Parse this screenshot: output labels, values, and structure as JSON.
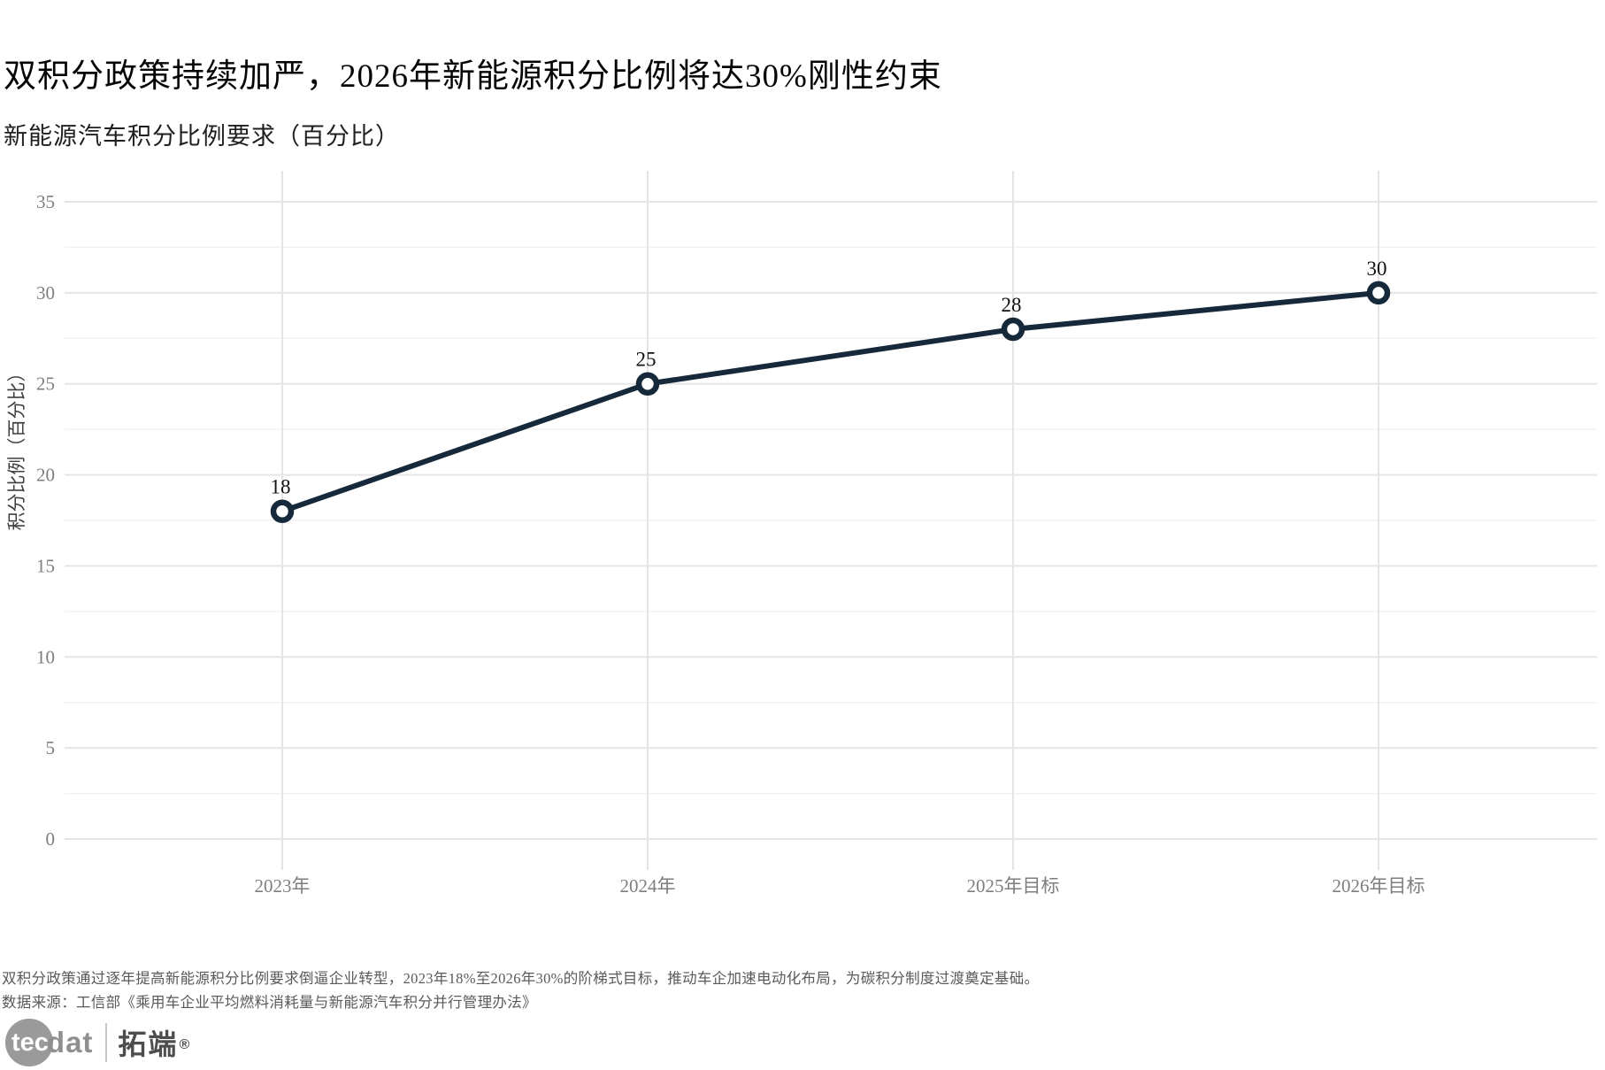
{
  "header": {
    "title": "双积分政策持续加严，2026年新能源积分比例将达30%刚性约束"
  },
  "chart_data": {
    "type": "line",
    "title": "新能源汽车积分比例要求（百分比）",
    "categories": [
      "2023年",
      "2024年",
      "2025年目标",
      "2026年目标"
    ],
    "values": [
      18,
      25,
      28,
      30
    ],
    "point_labels": [
      "18",
      "25",
      "28",
      "30"
    ],
    "xlabel": "",
    "ylabel": "积分比例（百分比）",
    "ylim": [
      0,
      35
    ],
    "ytick_step": 5,
    "yticks": [
      0,
      5,
      10,
      15,
      20,
      25,
      30,
      35
    ],
    "minor_tick_offset": 2.5,
    "grid": "major+minor horizontal, major vertical per category",
    "legend": "none",
    "colors": {
      "line": "#16293a",
      "point_fill": "#ffffff",
      "major_grid": "#e5e5e5",
      "minor_grid": "#f2f2f2",
      "tick_label": "#7e7e7e",
      "axis_title": "#3f3f3f",
      "data_label": "#111111"
    }
  },
  "footer": {
    "note": "双积分政策通过逐年提高新能源积分比例要求倒逼企业转型，2023年18%至2026年30%的阶梯式目标，推动车企加速电动化布局，为碳积分制度过渡奠定基础。",
    "source": "数据来源：工信部《乘用车企业平均燃料消耗量与新能源汽车积分并行管理办法》"
  },
  "logo": {
    "tec": "tec",
    "dat": "dat",
    "brand": "拓端",
    "reg": "®"
  }
}
